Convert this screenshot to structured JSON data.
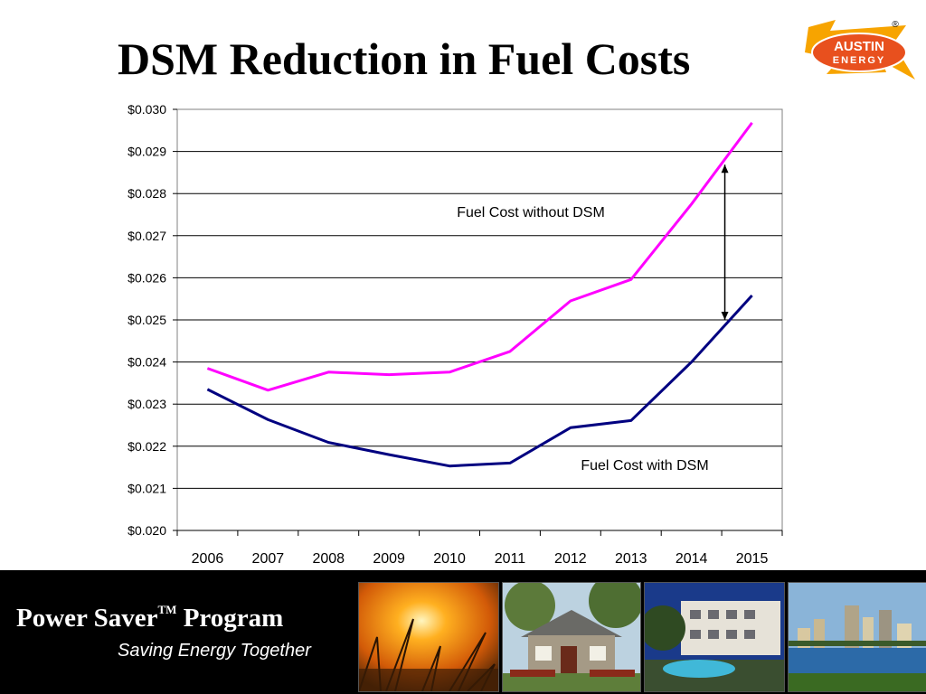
{
  "slide": {
    "title": "DSM Reduction in Fuel Costs",
    "logo_line1": "AUSTIN",
    "logo_line2": "ENERGY",
    "logo_mark": "®"
  },
  "footer": {
    "program": "Power Saver",
    "trademark": "TM",
    "program_suffix": "Program",
    "tagline": "Saving Energy Together",
    "photos": [
      "sunset-grass-photo",
      "bungalow-house-photo",
      "apartment-pool-photo",
      "city-skyline-lake-photo"
    ]
  },
  "chart_data": {
    "type": "line",
    "x": [
      "2006",
      "2007",
      "2008",
      "2009",
      "2010",
      "2011",
      "2012",
      "2013",
      "2014",
      "2015"
    ],
    "ylim": [
      0.02,
      0.03
    ],
    "yticks": [
      0.02,
      0.021,
      0.022,
      0.023,
      0.024,
      0.025,
      0.026,
      0.027,
      0.028,
      0.029,
      0.03
    ],
    "ytick_labels": [
      "$0.020",
      "$0.021",
      "$0.022",
      "$0.023",
      "$0.024",
      "$0.025",
      "$0.026",
      "$0.027",
      "$0.028",
      "$0.029",
      "$0.030"
    ],
    "grid": "horizontal",
    "series": [
      {
        "name": "Fuel Cost without DSM",
        "color": "#ff00ff",
        "values": [
          0.02385,
          0.02333,
          0.02376,
          0.0237,
          0.02376,
          0.02425,
          0.02545,
          0.02596,
          0.02775,
          0.02968
        ]
      },
      {
        "name": "Fuel Cost with DSM",
        "color": "#000080",
        "values": [
          0.02335,
          0.02263,
          0.02209,
          0.0218,
          0.02153,
          0.0216,
          0.02244,
          0.02261,
          0.024,
          0.02558
        ]
      }
    ],
    "annotations": {
      "without_label": "Fuel Cost without DSM",
      "with_label": "Fuel Cost with DSM",
      "gap_arrow_year": "2015"
    }
  }
}
